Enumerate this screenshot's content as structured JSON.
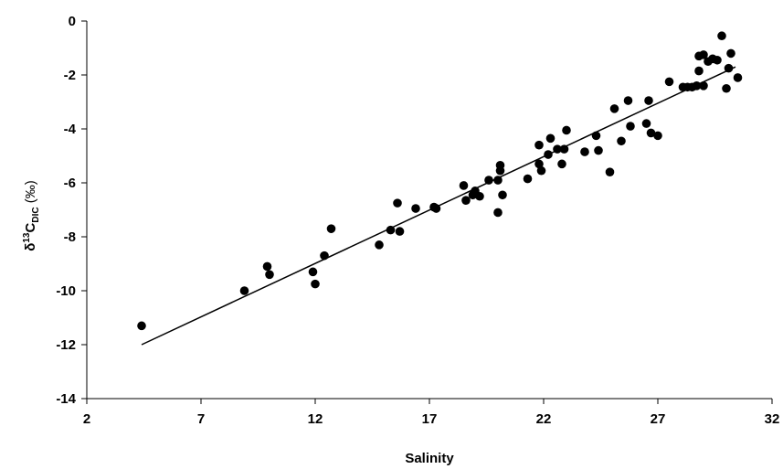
{
  "chart_data": {
    "type": "scatter",
    "xlabel": "Salinity",
    "ylabel": {
      "prefix": "δ",
      "superscript": "13",
      "base": "C",
      "subscript": "DIC",
      "unit": "(‰)"
    },
    "xlim": [
      2,
      32
    ],
    "ylim": [
      -14,
      0
    ],
    "x_ticks": [
      2,
      7,
      12,
      17,
      22,
      27,
      32
    ],
    "y_ticks": [
      0,
      -2,
      -4,
      -6,
      -8,
      -10,
      -12,
      -14
    ],
    "grid": false,
    "legend": "none",
    "marker_color": "#000000",
    "series": [
      {
        "points": [
          [
            4.4,
            -11.3
          ],
          [
            8.9,
            -10.0
          ],
          [
            9.9,
            -9.1
          ],
          [
            10.0,
            -9.4
          ],
          [
            11.9,
            -9.3
          ],
          [
            12.0,
            -9.75
          ],
          [
            12.4,
            -8.7
          ],
          [
            12.7,
            -7.7
          ],
          [
            14.8,
            -8.3
          ],
          [
            15.3,
            -7.75
          ],
          [
            15.6,
            -6.75
          ],
          [
            15.7,
            -7.8
          ],
          [
            16.4,
            -6.95
          ],
          [
            17.2,
            -6.9
          ],
          [
            17.3,
            -6.95
          ],
          [
            18.5,
            -6.1
          ],
          [
            18.6,
            -6.65
          ],
          [
            18.9,
            -6.45
          ],
          [
            19.0,
            -6.3
          ],
          [
            19.2,
            -6.5
          ],
          [
            19.6,
            -5.9
          ],
          [
            20.0,
            -7.1
          ],
          [
            20.0,
            -5.9
          ],
          [
            20.1,
            -5.55
          ],
          [
            20.1,
            -5.35
          ],
          [
            20.2,
            -6.45
          ],
          [
            21.3,
            -5.85
          ],
          [
            21.8,
            -5.3
          ],
          [
            21.8,
            -4.6
          ],
          [
            21.9,
            -5.55
          ],
          [
            22.2,
            -4.95
          ],
          [
            22.3,
            -4.35
          ],
          [
            22.6,
            -4.75
          ],
          [
            22.8,
            -5.3
          ],
          [
            22.9,
            -4.75
          ],
          [
            23.0,
            -4.05
          ],
          [
            23.8,
            -4.85
          ],
          [
            24.3,
            -4.25
          ],
          [
            24.4,
            -4.8
          ],
          [
            24.9,
            -5.6
          ],
          [
            25.1,
            -3.25
          ],
          [
            25.4,
            -4.45
          ],
          [
            25.7,
            -2.95
          ],
          [
            25.8,
            -3.9
          ],
          [
            26.5,
            -3.8
          ],
          [
            26.6,
            -2.95
          ],
          [
            26.7,
            -4.15
          ],
          [
            27.0,
            -4.25
          ],
          [
            27.5,
            -2.25
          ],
          [
            28.1,
            -2.45
          ],
          [
            28.3,
            -2.45
          ],
          [
            28.5,
            -2.45
          ],
          [
            28.7,
            -2.4
          ],
          [
            28.8,
            -1.85
          ],
          [
            28.8,
            -1.3
          ],
          [
            29.0,
            -1.25
          ],
          [
            29.0,
            -2.4
          ],
          [
            29.2,
            -1.5
          ],
          [
            29.4,
            -1.4
          ],
          [
            29.6,
            -1.45
          ],
          [
            29.8,
            -0.55
          ],
          [
            30.0,
            -2.5
          ],
          [
            30.1,
            -1.75
          ],
          [
            30.2,
            -1.2
          ],
          [
            30.5,
            -2.1
          ]
        ]
      }
    ],
    "trendline": {
      "x": [
        4.4,
        30.4
      ],
      "y": [
        -12.0,
        -1.7
      ]
    }
  }
}
